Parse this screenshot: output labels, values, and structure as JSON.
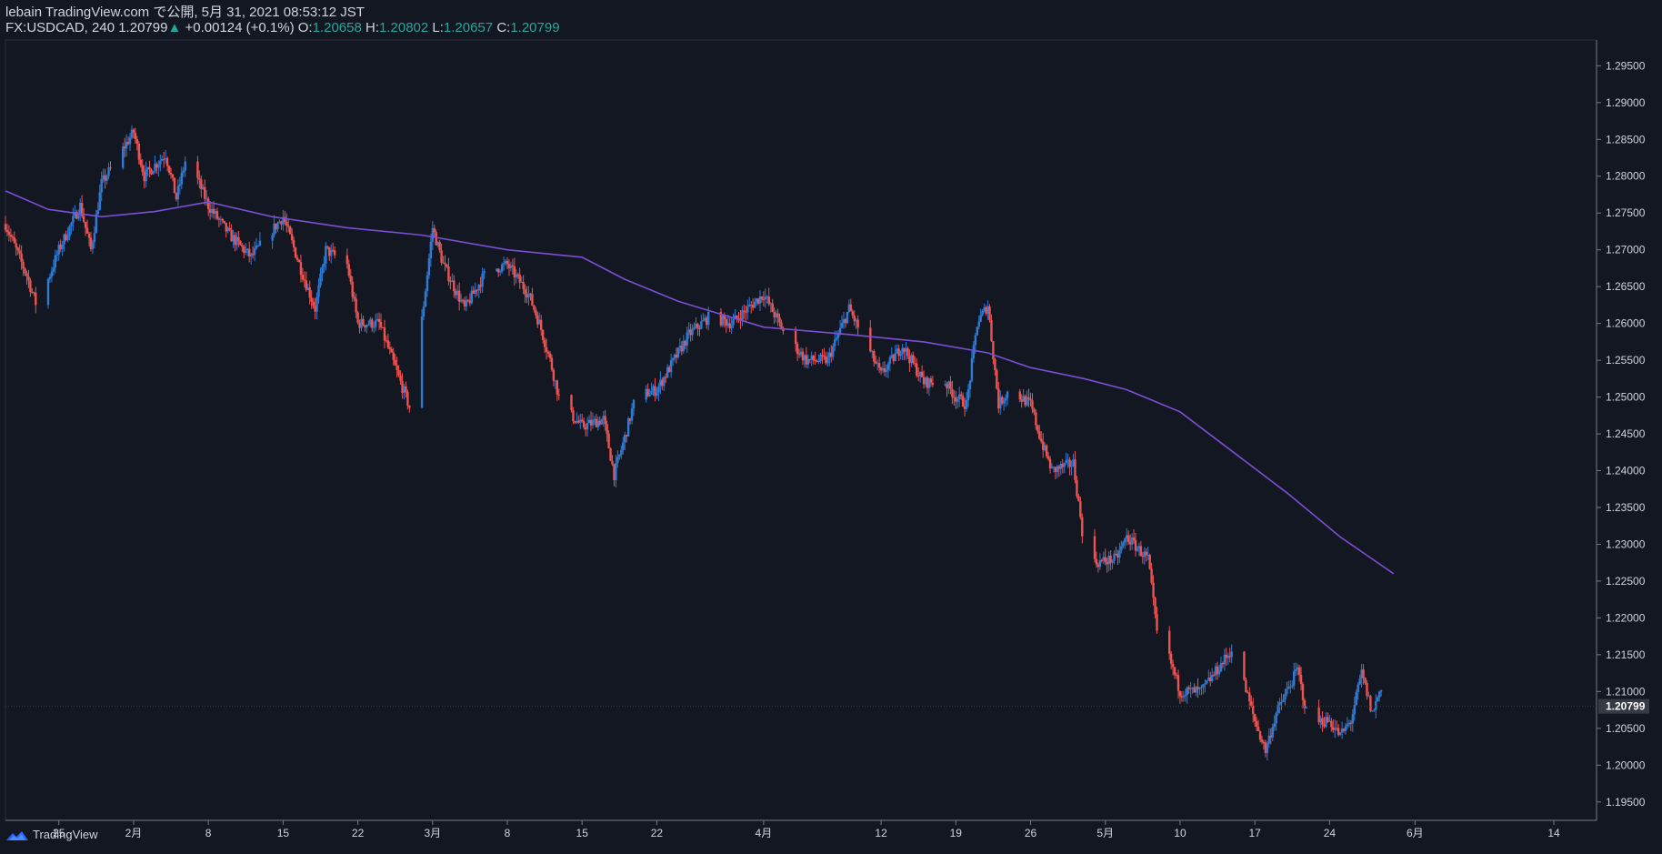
{
  "header": {
    "publish_line": "lebain TradingView.com で公開, 5月 31, 2021 08:53:12 JST",
    "symbol": "FX:USDCAD, 240",
    "last_price": "1.20799",
    "change_arrow": "▲",
    "change": "+0.00124 (+0.1%)",
    "o_label": "O:",
    "o_value": "1.20658",
    "h_label": "H:",
    "h_value": "1.20802",
    "l_label": "L:",
    "l_value": "1.20657",
    "c_label": "C:",
    "c_value": "1.20799"
  },
  "footer": {
    "brand": "TradingView"
  },
  "colors": {
    "background": "#131722",
    "up_candle": "#2e7bd6",
    "down_candle": "#ef5350",
    "moving_average": "#7b4fd3",
    "price_tag_bg": "#363a45"
  },
  "chart_data": {
    "type": "candlestick",
    "ylim": [
      1.1925,
      1.2985
    ],
    "y_ticks": [
      "1.19500",
      "1.20000",
      "1.20500",
      "1.21000",
      "1.21500",
      "1.22000",
      "1.22500",
      "1.23000",
      "1.23500",
      "1.24000",
      "1.24500",
      "1.25000",
      "1.25500",
      "1.26000",
      "1.26500",
      "1.27000",
      "1.27500",
      "1.28000",
      "1.28500",
      "1.29000",
      "1.29500"
    ],
    "x_ticks": [
      "25",
      "2月",
      "8",
      "15",
      "22",
      "3月",
      "8",
      "15",
      "22",
      "4月",
      "12",
      "19",
      "26",
      "5月",
      "10",
      "17",
      "24",
      "6月",
      "14"
    ],
    "x_tick_dates": [
      "2021-01-25",
      "2021-02-01",
      "2021-02-08",
      "2021-02-15",
      "2021-02-22",
      "2021-03-01",
      "2021-03-08",
      "2021-03-15",
      "2021-03-22",
      "2021-04-01",
      "2021-04-12",
      "2021-04-19",
      "2021-04-26",
      "2021-05-03",
      "2021-05-10",
      "2021-05-17",
      "2021-05-24",
      "2021-06-01",
      "2021-06-14"
    ],
    "current_price": "1.20799",
    "price_path": [
      [
        "2021-01-20",
        1.2735
      ],
      [
        "2021-01-22",
        1.2665
      ],
      [
        "2021-01-23",
        1.262
      ],
      [
        "2021-01-25",
        1.27
      ],
      [
        "2021-01-27",
        1.276
      ],
      [
        "2021-01-28",
        1.27
      ],
      [
        "2021-01-29",
        1.279
      ],
      [
        "2021-02-01",
        1.286
      ],
      [
        "2021-02-02",
        1.28
      ],
      [
        "2021-02-04",
        1.283
      ],
      [
        "2021-02-05",
        1.277
      ],
      [
        "2021-02-06",
        1.283
      ],
      [
        "2021-02-08",
        1.276
      ],
      [
        "2021-02-10",
        1.272
      ],
      [
        "2021-02-12",
        1.269
      ],
      [
        "2021-02-15",
        1.2745
      ],
      [
        "2021-02-17",
        1.266
      ],
      [
        "2021-02-18",
        1.262
      ],
      [
        "2021-02-19",
        1.27
      ],
      [
        "2021-02-21",
        1.268
      ],
      [
        "2021-02-22",
        1.26
      ],
      [
        "2021-02-24",
        1.26
      ],
      [
        "2021-02-25",
        1.256
      ],
      [
        "2021-02-27",
        1.248
      ],
      [
        "2021-03-01",
        1.273
      ],
      [
        "2021-03-02",
        1.268
      ],
      [
        "2021-03-04",
        1.262
      ],
      [
        "2021-03-06",
        1.267
      ],
      [
        "2021-03-08",
        1.268
      ],
      [
        "2021-03-10",
        1.264
      ],
      [
        "2021-03-11",
        1.26
      ],
      [
        "2021-03-12",
        1.255
      ],
      [
        "2021-03-13",
        1.249
      ],
      [
        "2021-03-15",
        1.246
      ],
      [
        "2021-03-17",
        1.247
      ],
      [
        "2021-03-18",
        1.2395
      ],
      [
        "2021-03-19",
        1.2445
      ],
      [
        "2021-03-20",
        1.25
      ],
      [
        "2021-03-22",
        1.251
      ],
      [
        "2021-03-24",
        1.256
      ],
      [
        "2021-03-25",
        1.2585
      ],
      [
        "2021-03-27",
        1.261
      ],
      [
        "2021-03-29",
        1.26
      ],
      [
        "2021-04-01",
        1.264
      ],
      [
        "2021-04-03",
        1.2585
      ],
      [
        "2021-04-05",
        1.255
      ],
      [
        "2021-04-07",
        1.255
      ],
      [
        "2021-04-09",
        1.262
      ],
      [
        "2021-04-11",
        1.256
      ],
      [
        "2021-04-12",
        1.253
      ],
      [
        "2021-04-14",
        1.257
      ],
      [
        "2021-04-16",
        1.252
      ],
      [
        "2021-04-18",
        1.252
      ],
      [
        "2021-04-19",
        1.25
      ],
      [
        "2021-04-20",
        1.249
      ],
      [
        "2021-04-21",
        1.26
      ],
      [
        "2021-04-22",
        1.2625
      ],
      [
        "2021-04-23",
        1.249
      ],
      [
        "2021-04-24",
        1.251
      ],
      [
        "2021-04-26",
        1.249
      ],
      [
        "2021-04-27",
        1.244
      ],
      [
        "2021-04-28",
        1.24
      ],
      [
        "2021-04-30",
        1.241
      ],
      [
        "2021-05-01",
        1.23
      ],
      [
        "2021-05-02",
        1.2275
      ],
      [
        "2021-05-04",
        1.228
      ],
      [
        "2021-05-05",
        1.231
      ],
      [
        "2021-05-07",
        1.228
      ],
      [
        "2021-05-08",
        1.216
      ],
      [
        "2021-05-09",
        1.2145
      ],
      [
        "2021-05-10",
        1.21
      ],
      [
        "2021-05-12",
        1.21
      ],
      [
        "2021-05-14",
        1.214
      ],
      [
        "2021-05-15",
        1.216
      ],
      [
        "2021-05-16",
        1.211
      ],
      [
        "2021-05-17",
        1.206
      ],
      [
        "2021-05-18",
        1.202
      ],
      [
        "2021-05-19",
        1.207
      ],
      [
        "2021-05-21",
        1.213
      ],
      [
        "2021-05-22",
        1.206
      ],
      [
        "2021-05-24",
        1.206
      ],
      [
        "2021-05-25",
        1.204
      ],
      [
        "2021-05-26",
        1.206
      ],
      [
        "2021-05-27",
        1.2125
      ],
      [
        "2021-05-28",
        1.207
      ],
      [
        "2021-05-29",
        1.2115
      ],
      [
        "2021-05-30",
        1.208
      ]
    ],
    "series": [
      {
        "type": "line",
        "points": [
          [
            "2021-01-20",
            1.278
          ],
          [
            "2021-01-24",
            1.2755
          ],
          [
            "2021-01-29",
            1.2745
          ],
          [
            "2021-02-03",
            1.2752
          ],
          [
            "2021-02-08",
            1.2765
          ],
          [
            "2021-02-14",
            1.2745
          ],
          [
            "2021-02-21",
            1.273
          ],
          [
            "2021-02-28",
            1.272
          ],
          [
            "2021-03-08",
            1.27
          ],
          [
            "2021-03-15",
            1.269
          ],
          [
            "2021-03-19",
            1.266
          ],
          [
            "2021-03-24",
            1.263
          ],
          [
            "2021-04-01",
            1.2595
          ],
          [
            "2021-04-09",
            1.2585
          ],
          [
            "2021-04-16",
            1.2575
          ],
          [
            "2021-04-22",
            1.256
          ],
          [
            "2021-04-26",
            1.254
          ],
          [
            "2021-05-01",
            1.2525
          ],
          [
            "2021-05-05",
            1.251
          ],
          [
            "2021-05-10",
            1.248
          ],
          [
            "2021-05-15",
            1.2425
          ],
          [
            "2021-05-20",
            1.237
          ],
          [
            "2021-05-25",
            1.231
          ],
          [
            "2021-05-30",
            1.226
          ]
        ]
      }
    ]
  }
}
